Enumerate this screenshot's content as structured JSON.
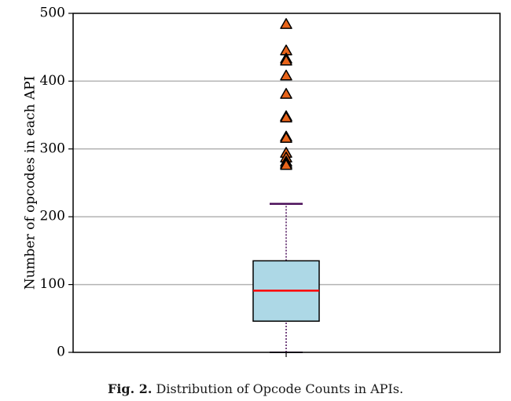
{
  "caption": {
    "label": "Fig. 2.",
    "text": "Distribution of Opcode Counts in APIs."
  },
  "chart_data": {
    "type": "box",
    "title": "",
    "xlabel": "",
    "ylabel": "Number of opcodes in each API",
    "ylim": [
      0,
      500
    ],
    "yticks": [
      0,
      100,
      200,
      300,
      400,
      500
    ],
    "grid": true,
    "box": {
      "min": 0,
      "q1": 46,
      "median": 91,
      "q3": 135,
      "upper_whisker": 219
    },
    "outliers": [
      484,
      445,
      433,
      430,
      408,
      381,
      348,
      346,
      318,
      316,
      294,
      287,
      281,
      278,
      276
    ],
    "colors": {
      "box_fill": "#add8e6",
      "median_line": "#ff0000",
      "whisker": "#4b0f5a",
      "outlier_fill": "#e8641a",
      "grid": "#b3b3b3"
    }
  }
}
